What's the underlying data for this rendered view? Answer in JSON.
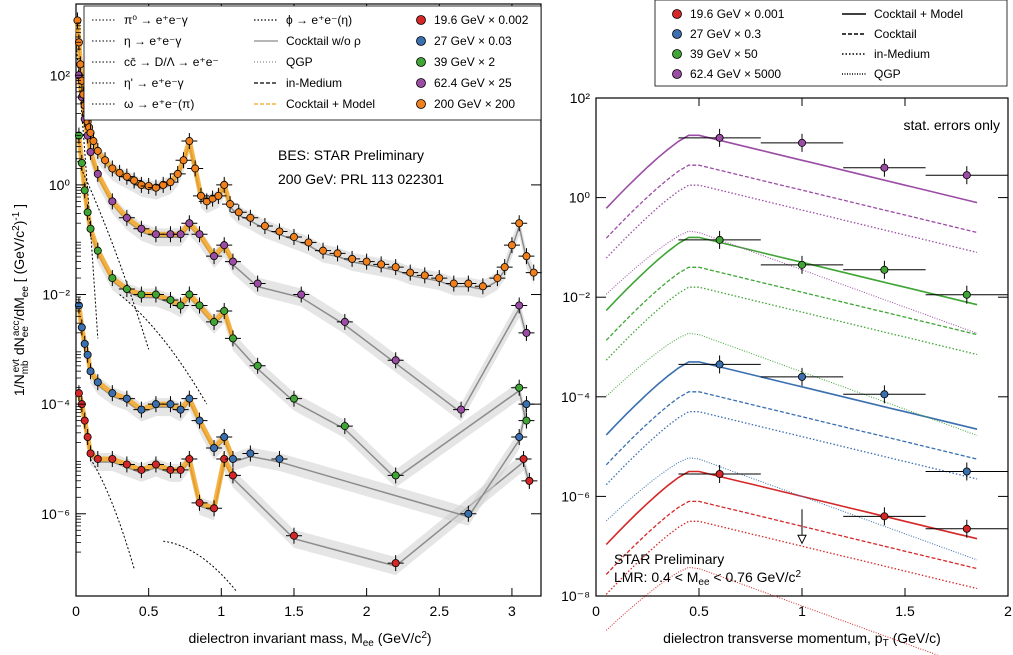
{
  "chart_data": [
    {
      "type": "scatter",
      "panel": "left",
      "title": "",
      "xlabel": "dielectron invariant mass, M_ee (GeV/c²)",
      "ylabel": "1/N_mb^evt dN_ee^acc/dM_ee [ (GeV/c²)^-1 ]",
      "xlim": [
        0,
        3.2
      ],
      "ylim_log10": [
        -7.5,
        3.3
      ],
      "log_y": true,
      "x_ticks": [
        "0",
        "0.5",
        "1",
        "1.5",
        "2",
        "2.5",
        "3"
      ],
      "y_ticks": [
        "10⁻⁶",
        "10⁻⁴",
        "10⁻²",
        "10⁰",
        "10²"
      ],
      "annotations": [
        "BES: STAR Preliminary",
        "200 GeV: PRL 113 022301"
      ],
      "legend_left": [
        {
          "label": "π⁰ → e⁺e⁻γ",
          "style": "dotted"
        },
        {
          "label": "η → e⁺e⁻γ",
          "style": "dotted"
        },
        {
          "label": "cc̄ → D/Λ → e⁺e⁻",
          "style": "dotted"
        },
        {
          "label": "η' → e⁺e⁻γ",
          "style": "dotted"
        },
        {
          "label": "ω → e⁺e⁻(π)",
          "style": "dotted"
        }
      ],
      "legend_mid": [
        {
          "label": "ϕ → e⁺e⁻(η)",
          "style": "dotted"
        },
        {
          "label": "Cocktail w/o ρ",
          "style": "solid-gray"
        },
        {
          "label": "QGP",
          "style": "dotted-gray"
        },
        {
          "label": "in-Medium",
          "style": "dashed"
        },
        {
          "label": "Cocktail + Model",
          "style": "dashed-orange"
        }
      ],
      "series": [
        {
          "name": "19.6 GeV × 0.002",
          "color": "#d62728",
          "x": [
            0.02,
            0.04,
            0.06,
            0.08,
            0.1,
            0.15,
            0.25,
            0.35,
            0.45,
            0.55,
            0.65,
            0.72,
            0.78,
            0.85,
            0.95,
            1.02,
            1.08,
            1.5,
            2.2,
            3.08,
            3.12
          ],
          "y": [
            -3.8,
            -4.0,
            -4.3,
            -4.6,
            -4.9,
            -5.0,
            -5.0,
            -5.1,
            -5.2,
            -5.1,
            -5.2,
            -5.2,
            -5.0,
            -5.8,
            -5.9,
            -5.0,
            -5.3,
            -6.4,
            -6.9,
            -5.0,
            -5.4
          ]
        },
        {
          "name": "27 GeV × 0.03",
          "color": "#3a6fb0",
          "x": [
            0.02,
            0.04,
            0.06,
            0.08,
            0.1,
            0.15,
            0.25,
            0.35,
            0.45,
            0.55,
            0.65,
            0.72,
            0.78,
            0.85,
            0.95,
            1.02,
            1.08,
            1.2,
            1.4,
            2.7,
            3.05,
            3.1
          ],
          "y": [
            -2.2,
            -2.6,
            -2.9,
            -3.1,
            -3.4,
            -3.6,
            -3.8,
            -3.9,
            -4.1,
            -4.0,
            -4.0,
            -4.1,
            -3.9,
            -4.3,
            -4.8,
            -4.6,
            -5.0,
            -4.9,
            -5.0,
            -6.0,
            -4.6,
            -4.0
          ]
        },
        {
          "name": "39 GeV × 2",
          "color": "#3fa535",
          "x": [
            0.02,
            0.04,
            0.06,
            0.08,
            0.1,
            0.15,
            0.25,
            0.35,
            0.45,
            0.55,
            0.65,
            0.72,
            0.78,
            0.85,
            0.95,
            1.02,
            1.08,
            1.25,
            1.5,
            1.85,
            2.2,
            3.05,
            3.1
          ],
          "y": [
            0.9,
            0.4,
            -0.1,
            -0.5,
            -0.8,
            -1.2,
            -1.7,
            -1.9,
            -2.0,
            -2.0,
            -2.1,
            -2.2,
            -2.0,
            -2.2,
            -2.5,
            -2.3,
            -2.8,
            -3.3,
            -3.9,
            -4.4,
            -5.3,
            -3.7,
            -4.3
          ]
        },
        {
          "name": "62.4 GeV × 25",
          "color": "#9b4ca5",
          "x": [
            0.02,
            0.04,
            0.06,
            0.08,
            0.1,
            0.15,
            0.25,
            0.35,
            0.45,
            0.55,
            0.65,
            0.72,
            0.78,
            0.85,
            0.95,
            1.02,
            1.08,
            1.25,
            1.55,
            1.85,
            2.2,
            2.65,
            3.05,
            3.1
          ],
          "y": [
            2.0,
            1.6,
            1.2,
            0.9,
            0.6,
            0.2,
            -0.3,
            -0.6,
            -0.8,
            -0.9,
            -0.9,
            -0.9,
            -0.7,
            -0.9,
            -1.3,
            -1.1,
            -1.4,
            -1.8,
            -2.0,
            -2.5,
            -3.2,
            -4.1,
            -2.2,
            -2.7
          ]
        },
        {
          "name": "200 GeV × 200",
          "color": "#f07f1c",
          "x": [
            0.01,
            0.02,
            0.03,
            0.04,
            0.05,
            0.06,
            0.07,
            0.08,
            0.09,
            0.1,
            0.12,
            0.15,
            0.2,
            0.25,
            0.3,
            0.35,
            0.4,
            0.45,
            0.5,
            0.55,
            0.6,
            0.65,
            0.7,
            0.74,
            0.78,
            0.82,
            0.86,
            0.9,
            0.94,
            0.98,
            1.02,
            1.06,
            1.12,
            1.2,
            1.3,
            1.4,
            1.5,
            1.6,
            1.7,
            1.8,
            1.9,
            2.0,
            2.1,
            2.2,
            2.3,
            2.4,
            2.5,
            2.6,
            2.7,
            2.8,
            2.9,
            2.95,
            3.0,
            3.05,
            3.1,
            3.15
          ],
          "y": [
            3.0,
            2.6,
            2.2,
            1.9,
            1.65,
            1.45,
            1.3,
            1.15,
            1.05,
            0.95,
            0.8,
            0.62,
            0.45,
            0.3,
            0.22,
            0.15,
            0.08,
            0.0,
            -0.02,
            -0.05,
            0.0,
            0.05,
            0.2,
            0.45,
            0.8,
            0.3,
            -0.2,
            -0.3,
            -0.25,
            -0.2,
            0.0,
            -0.35,
            -0.5,
            -0.6,
            -0.75,
            -0.85,
            -0.95,
            -1.05,
            -1.2,
            -1.25,
            -1.35,
            -1.4,
            -1.45,
            -1.5,
            -1.6,
            -1.65,
            -1.7,
            -1.8,
            -1.8,
            -1.85,
            -1.7,
            -1.5,
            -1.1,
            -0.7,
            -1.3,
            -1.6
          ]
        }
      ]
    },
    {
      "type": "scatter",
      "panel": "right",
      "title": "",
      "xlabel": "dielectron transverse momentum, p_T (GeV/c)",
      "ylabel": "",
      "xlim": [
        0,
        2
      ],
      "ylim_log10": [
        -8,
        2
      ],
      "log_y": true,
      "x_ticks": [
        "0",
        "0.5",
        "1",
        "1.5",
        "2"
      ],
      "y_ticks": [
        "10⁻⁸",
        "10⁻⁶",
        "10⁻⁴",
        "10⁻²",
        "10⁰",
        "10²"
      ],
      "annotations": [
        "stat. errors only",
        "STAR Preliminary",
        "LMR: 0.4 < Mₑₑ < 0.76 GeV/c²"
      ],
      "legend_left": [
        {
          "label": "19.6 GeV × 0.001",
          "color": "#d62728"
        },
        {
          "label": "27 GeV × 0.3",
          "color": "#3a6fb0"
        },
        {
          "label": "39 GeV × 50",
          "color": "#3fa535"
        },
        {
          "label": "62.4 GeV × 5000",
          "color": "#9b4ca5"
        }
      ],
      "legend_right": [
        {
          "label": "Cocktail + Model",
          "style": "solid"
        },
        {
          "label": "Cocktail",
          "style": "dashed"
        },
        {
          "label": "in-Medium",
          "style": "dotted"
        },
        {
          "label": "QGP",
          "style": "dotted-thin"
        }
      ],
      "series": [
        {
          "name": "19.6 GeV × 0.001",
          "color": "#d62728",
          "x": [
            0.6,
            1.4,
            1.8
          ],
          "y": [
            -5.55,
            -6.4,
            -6.65
          ],
          "xerr": [
            0.2,
            0.2,
            0.2
          ],
          "upper_limit_x": [
            1.0
          ],
          "upper_limit_y": [
            -6.5
          ]
        },
        {
          "name": "27 GeV × 0.3",
          "color": "#3a6fb0",
          "x": [
            0.6,
            1.0,
            1.4,
            1.8
          ],
          "y": [
            -3.35,
            -3.6,
            -3.95,
            -5.5
          ],
          "xerr": [
            0.2,
            0.2,
            0.2,
            0.2
          ]
        },
        {
          "name": "39 GeV × 50",
          "color": "#3fa535",
          "x": [
            0.6,
            1.0,
            1.4,
            1.8
          ],
          "y": [
            -0.85,
            -1.35,
            -1.45,
            -1.95
          ],
          "xerr": [
            0.2,
            0.2,
            0.2,
            0.2
          ]
        },
        {
          "name": "62.4 GeV × 5000",
          "color": "#9b4ca5",
          "x": [
            0.6,
            1.0,
            1.4,
            1.8
          ],
          "y": [
            1.2,
            1.1,
            0.6,
            0.45
          ],
          "xerr": [
            0.2,
            0.2,
            0.2,
            0.2
          ]
        }
      ]
    }
  ]
}
